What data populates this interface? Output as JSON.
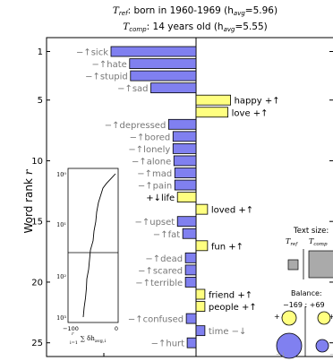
{
  "chart_data": {
    "type": "bar",
    "orientation": "horizontal",
    "title_lines": [
      {
        "label": "T",
        "sub": "ref",
        "text": ": born in 1960-1969 (h",
        "hsub": "avg",
        "tail": "=5.96)"
      },
      {
        "label": "T",
        "sub": "comp",
        "text": ": 14 years old (h",
        "hsub": "avg",
        "tail": "=5.55)"
      }
    ],
    "ylabel": "Word rank r",
    "yticks": [
      1,
      5,
      10,
      15,
      20,
      25
    ],
    "xlim": [
      -100,
      100
    ],
    "ylim": [
      1,
      25
    ],
    "words": [
      {
        "rank": 1,
        "label": "−↑sick",
        "value": -96,
        "color": "#8080f0"
      },
      {
        "rank": 2,
        "label": "−↑hate",
        "value": -75,
        "color": "#8080f0"
      },
      {
        "rank": 3,
        "label": "−↑stupid",
        "value": -74,
        "color": "#8080f0"
      },
      {
        "rank": 4,
        "label": "−↑sad",
        "value": -51,
        "color": "#8080f0"
      },
      {
        "rank": 5,
        "label": "happy +↑",
        "value": 39,
        "color": "#ffff80"
      },
      {
        "rank": 6,
        "label": "love +↑",
        "value": 36,
        "color": "#ffff80"
      },
      {
        "rank": 7,
        "label": "−↑depressed",
        "value": -31,
        "color": "#8080f0"
      },
      {
        "rank": 8,
        "label": "−↑bored",
        "value": -26,
        "color": "#8080f0"
      },
      {
        "rank": 9,
        "label": "−↑lonely",
        "value": -26,
        "color": "#8080f0"
      },
      {
        "rank": 10,
        "label": "−↑alone",
        "value": -25,
        "color": "#8080f0"
      },
      {
        "rank": 11,
        "label": "−↑mad",
        "value": -24,
        "color": "#8080f0"
      },
      {
        "rank": 12,
        "label": "−↑pain",
        "value": -24,
        "color": "#8080f0"
      },
      {
        "rank": 13,
        "label": "+↓life",
        "value": -21,
        "color": "#ffff80"
      },
      {
        "rank": 14,
        "label": "loved +↑",
        "value": 13,
        "color": "#ffff80"
      },
      {
        "rank": 15,
        "label": "−↑upset",
        "value": -21,
        "color": "#8080f0"
      },
      {
        "rank": 16,
        "label": "−↑fat",
        "value": -15,
        "color": "#8080f0"
      },
      {
        "rank": 17,
        "label": "fun +↑",
        "value": 13,
        "color": "#ffff80"
      },
      {
        "rank": 18,
        "label": "−↑dead",
        "value": -12,
        "color": "#8080f0"
      },
      {
        "rank": 19,
        "label": "−↑scared",
        "value": -12,
        "color": "#8080f0"
      },
      {
        "rank": 20,
        "label": "−↑terrible",
        "value": -12,
        "color": "#8080f0"
      },
      {
        "rank": 21,
        "label": "friend +↑",
        "value": 10,
        "color": "#ffff80"
      },
      {
        "rank": 22,
        "label": "people +↑",
        "value": 10,
        "color": "#ffff80"
      },
      {
        "rank": 23,
        "label": "−↑confused",
        "value": -11,
        "color": "#8080f0"
      },
      {
        "rank": 24,
        "label": "time −↓",
        "value": 10,
        "color": "#8080f0"
      },
      {
        "rank": 25,
        "label": "−↑hurt",
        "value": -10,
        "color": "#8080f0"
      }
    ],
    "inset": {
      "ylabels": [
        "10⁰",
        "10¹",
        "10²",
        "10³"
      ],
      "xlabels": [
        "−100",
        "0"
      ],
      "xlabel": "∑ δh",
      "xlabel_sub": "i=1",
      "xlabel_sup": "r",
      "xlabel_tail": "avg,i",
      "curve": [
        [
          -2,
          0.0
        ],
        [
          -10,
          0.08
        ],
        [
          -22,
          0.2
        ],
        [
          -30,
          0.3
        ],
        [
          -35,
          0.45
        ],
        [
          -40,
          0.6
        ],
        [
          -44,
          0.8
        ],
        [
          -46,
          1.0
        ],
        [
          -50,
          1.2
        ],
        [
          -52,
          1.4
        ],
        [
          -58,
          1.6
        ],
        [
          -60,
          1.8
        ],
        [
          -62,
          2.0
        ],
        [
          -66,
          2.2
        ],
        [
          -67,
          2.4
        ],
        [
          -69,
          2.6
        ],
        [
          -72,
          2.8
        ],
        [
          -74,
          3.0
        ]
      ],
      "hline_value": 1.65
    },
    "text_size_legend": {
      "title": "Text size:",
      "ref_label": "T",
      "ref_sub": "ref",
      "comp_label": "T",
      "comp_sub": "comp"
    },
    "balance": {
      "title": "Balance:",
      "value": "−169 : +69",
      "plus_down": "+↓",
      "plus_up": "+",
      "minus_down": "−↓",
      "minus_up": "−"
    }
  }
}
